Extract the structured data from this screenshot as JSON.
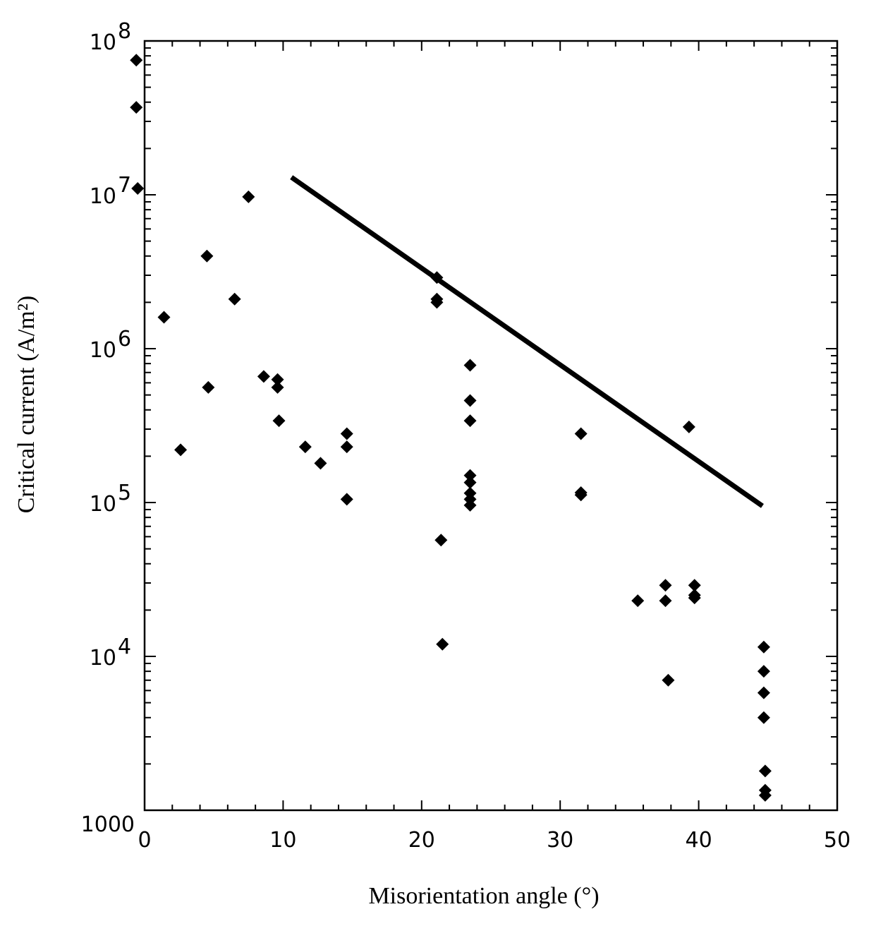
{
  "chart_data": {
    "type": "scatter",
    "xlabel": "Misorientation angle (°)",
    "ylabel": "Critical current (A/m²)",
    "xlim": [
      0,
      50
    ],
    "ylim": [
      1000,
      100000000
    ],
    "y_scale": "log",
    "x_ticks": [
      0,
      10,
      20,
      30,
      40,
      50
    ],
    "y_ticks": [
      {
        "value": 1000,
        "base": "1000",
        "exp": ""
      },
      {
        "value": 10000,
        "base": "10",
        "exp": "4"
      },
      {
        "value": 100000,
        "base": "10",
        "exp": "5"
      },
      {
        "value": 1000000,
        "base": "10",
        "exp": "6"
      },
      {
        "value": 10000000,
        "base": "10",
        "exp": "7"
      },
      {
        "value": 100000000,
        "base": "10",
        "exp": "8"
      }
    ],
    "marker": "diamond",
    "color": "#000000",
    "series": [
      {
        "kind": "points",
        "points": [
          [
            -0.6,
            75000000
          ],
          [
            -0.6,
            37000000
          ],
          [
            -0.5,
            11000000
          ],
          [
            1.4,
            1600000
          ],
          [
            2.6,
            220000
          ],
          [
            4.5,
            4000000
          ],
          [
            4.6,
            560000
          ],
          [
            6.5,
            2100000
          ],
          [
            7.5,
            9700000
          ],
          [
            8.6,
            660000
          ],
          [
            9.6,
            630000
          ],
          [
            9.6,
            560000
          ],
          [
            9.7,
            340000
          ],
          [
            11.6,
            230000
          ],
          [
            12.7,
            180000
          ],
          [
            14.6,
            280000
          ],
          [
            14.6,
            230000
          ],
          [
            14.6,
            105000
          ],
          [
            21.1,
            2900000
          ],
          [
            21.1,
            2100000
          ],
          [
            21.1,
            2000000
          ],
          [
            21.4,
            57000
          ],
          [
            21.5,
            12000
          ],
          [
            23.5,
            780000
          ],
          [
            23.5,
            460000
          ],
          [
            23.5,
            340000
          ],
          [
            23.5,
            150000
          ],
          [
            23.5,
            135000
          ],
          [
            23.5,
            115000
          ],
          [
            23.5,
            105000
          ],
          [
            23.5,
            96000
          ],
          [
            31.5,
            280000
          ],
          [
            31.5,
            116000
          ],
          [
            31.5,
            112000
          ],
          [
            35.6,
            23000
          ],
          [
            37.6,
            29000
          ],
          [
            37.6,
            23000
          ],
          [
            37.8,
            7000
          ],
          [
            39.3,
            310000
          ],
          [
            39.7,
            29000
          ],
          [
            39.7,
            25000
          ],
          [
            39.7,
            24000
          ],
          [
            44.7,
            11500
          ],
          [
            44.7,
            8000
          ],
          [
            44.7,
            5800
          ],
          [
            44.7,
            4000
          ],
          [
            44.8,
            1800
          ],
          [
            44.8,
            1350
          ],
          [
            44.8,
            1250
          ]
        ]
      },
      {
        "kind": "line",
        "points": [
          [
            10.6,
            13000000
          ],
          [
            44.6,
            95000
          ]
        ]
      }
    ]
  }
}
